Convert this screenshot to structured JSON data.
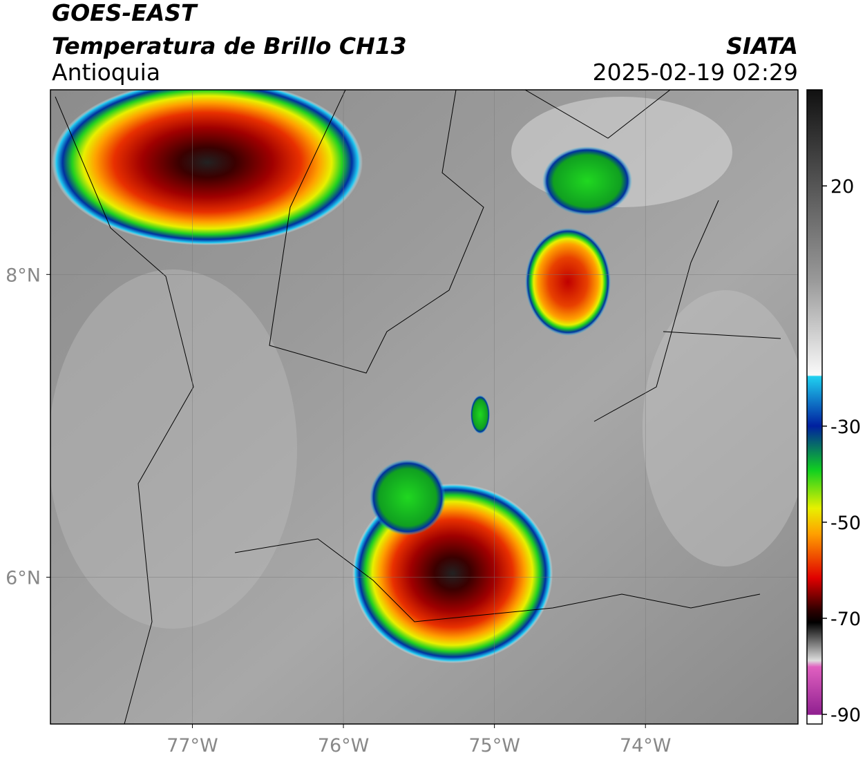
{
  "chart_data": {
    "type": "map",
    "title": "GOES-EAST",
    "subtitle": "Temperatura de Brillo CH13",
    "region": "Antioquia",
    "source": "SIATA",
    "timestamp": "2025-02-19 02:29",
    "xlim": [
      -77.94,
      -72.99
    ],
    "ylim": [
      5.03,
      9.22
    ],
    "xticks": [
      {
        "value": -77,
        "label": "77°W"
      },
      {
        "value": -76,
        "label": "76°W"
      },
      {
        "value": -75,
        "label": "75°W"
      },
      {
        "value": -74,
        "label": "74°W"
      }
    ],
    "yticks": [
      {
        "value": 8,
        "label": "8°N"
      },
      {
        "value": 6,
        "label": "6°N"
      }
    ],
    "grid": true,
    "colorbar": {
      "clim": [
        -92,
        40
      ],
      "ticks": [
        20,
        -30,
        -50,
        -70,
        -90
      ]
    }
  }
}
